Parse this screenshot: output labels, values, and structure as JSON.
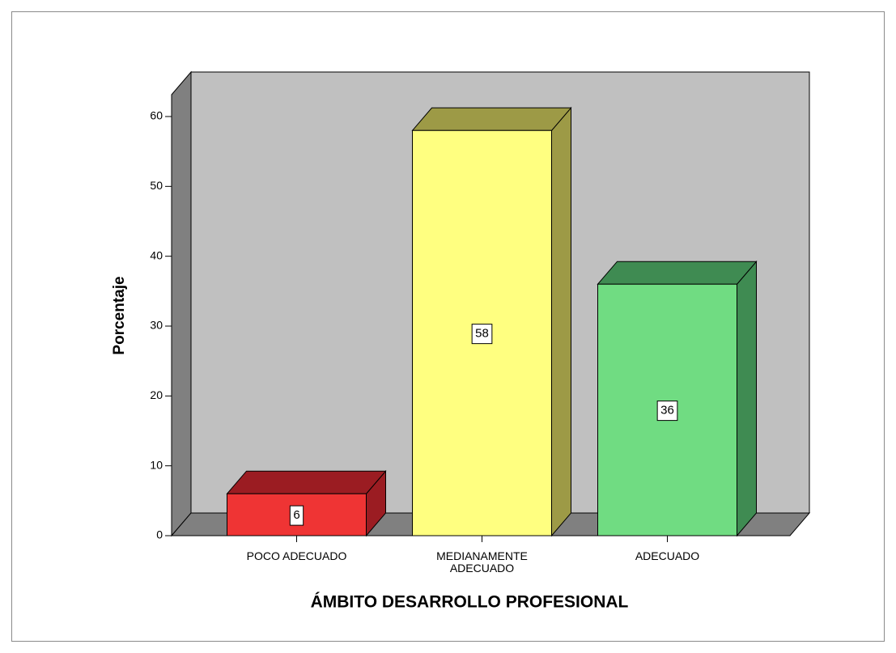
{
  "chart_data": {
    "type": "bar3d",
    "xlabel": "ÁMBITO DESARROLLO PROFESIONAL",
    "ylabel": "Porcentaje",
    "categories": [
      "POCO ADECUADO",
      "MEDIANAMENTE ADECUADO",
      "ADECUADO"
    ],
    "values": [
      6,
      58,
      36
    ],
    "colors": [
      "#ef3434",
      "#ffff80",
      "#70dc82"
    ],
    "side_colors": [
      "#9b1c22",
      "#9d9a46",
      "#3f8b52"
    ],
    "ylim": [
      0,
      60
    ],
    "yticks": [
      0,
      10,
      20,
      30,
      40,
      50,
      60
    ]
  }
}
